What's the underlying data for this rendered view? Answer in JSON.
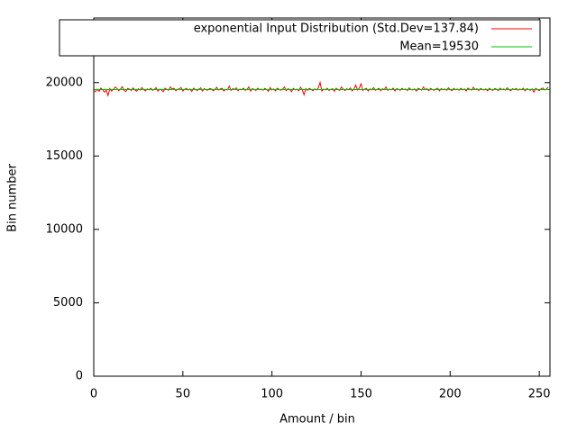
{
  "chart_data": {
    "type": "line",
    "xlabel": "Amount / bin",
    "ylabel": "Bin number",
    "xlim": [
      0,
      256
    ],
    "ylim": [
      0,
      24400
    ],
    "xticks": [
      0,
      50,
      100,
      150,
      200,
      250
    ],
    "yticks": [
      0,
      5000,
      10000,
      15000,
      20000
    ],
    "legend": "top right",
    "series": [
      {
        "name": "exponential Input Distribution (Std.Dev=137.84)",
        "color": "#ff0000",
        "x": [
          0,
          1,
          2,
          3,
          4,
          5,
          6,
          7,
          8,
          9,
          10,
          11,
          12,
          13,
          14,
          15,
          16,
          17,
          18,
          19,
          20,
          21,
          22,
          23,
          24,
          25,
          26,
          27,
          28,
          29,
          30,
          31,
          32,
          33,
          34,
          35,
          36,
          37,
          38,
          39,
          40,
          41,
          42,
          43,
          44,
          45,
          46,
          47,
          48,
          49,
          50,
          51,
          52,
          53,
          54,
          55,
          56,
          57,
          58,
          59,
          60,
          61,
          62,
          63,
          64,
          65,
          66,
          67,
          68,
          69,
          70,
          71,
          72,
          73,
          74,
          75,
          76,
          77,
          78,
          79,
          80,
          81,
          82,
          83,
          84,
          85,
          86,
          87,
          88,
          89,
          90,
          91,
          92,
          93,
          94,
          95,
          96,
          97,
          98,
          99,
          100,
          101,
          102,
          103,
          104,
          105,
          106,
          107,
          108,
          109,
          110,
          111,
          112,
          113,
          114,
          115,
          116,
          117,
          118,
          119,
          120,
          121,
          122,
          123,
          124,
          125,
          126,
          127,
          128,
          129,
          130,
          131,
          132,
          133,
          134,
          135,
          136,
          137,
          138,
          139,
          140,
          141,
          142,
          143,
          144,
          145,
          146,
          147,
          148,
          149,
          150,
          151,
          152,
          153,
          154,
          155,
          156,
          157,
          158,
          159,
          160,
          161,
          162,
          163,
          164,
          165,
          166,
          167,
          168,
          169,
          170,
          171,
          172,
          173,
          174,
          175,
          176,
          177,
          178,
          179,
          180,
          181,
          182,
          183,
          184,
          185,
          186,
          187,
          188,
          189,
          190,
          191,
          192,
          193,
          194,
          195,
          196,
          197,
          198,
          199,
          200,
          201,
          202,
          203,
          204,
          205,
          206,
          207,
          208,
          209,
          210,
          211,
          212,
          213,
          214,
          215,
          216,
          217,
          218,
          219,
          220,
          221,
          222,
          223,
          224,
          225,
          226,
          227,
          228,
          229,
          230,
          231,
          232,
          233,
          234,
          235,
          236,
          237,
          238,
          239,
          240,
          241,
          242,
          243,
          244,
          245,
          246,
          247,
          248,
          249,
          250,
          251,
          252,
          253,
          254,
          255
        ],
        "values": [
          19450,
          19380,
          19560,
          19400,
          19620,
          19510,
          19350,
          19480,
          19120,
          19590,
          19420,
          19530,
          19700,
          19610,
          19450,
          19560,
          19720,
          19480,
          19390,
          19600,
          19550,
          19460,
          19640,
          19520,
          19410,
          19580,
          19490,
          19660,
          19530,
          19440,
          19570,
          19500,
          19610,
          19470,
          19540,
          19650,
          19420,
          19560,
          19500,
          19380,
          19620,
          19530,
          19480,
          19700,
          19560,
          19610,
          19450,
          19520,
          19580,
          19660,
          19430,
          19540,
          19610,
          19490,
          19570,
          19400,
          19620,
          19530,
          19470,
          19550,
          19640,
          19420,
          19590,
          19510,
          19480,
          19600,
          19560,
          19450,
          19530,
          19680,
          19490,
          19570,
          19610,
          19430,
          19540,
          19500,
          19760,
          19470,
          19590,
          19520,
          19640,
          19450,
          19560,
          19500,
          19610,
          19480,
          19530,
          19700,
          19420,
          19590,
          19540,
          19470,
          19620,
          19510,
          19560,
          19480,
          19600,
          19530,
          19410,
          19660,
          19500,
          19570,
          19440,
          19620,
          19530,
          19480,
          19560,
          19700,
          19450,
          19590,
          19520,
          19380,
          19610,
          19500,
          19560,
          19440,
          19680,
          19520,
          19170,
          19590,
          19480,
          19610,
          19530,
          19450,
          19570,
          19500,
          19640,
          20010,
          19420,
          19560,
          19500,
          19610,
          19470,
          19530,
          19590,
          19410,
          19620,
          19520,
          19480,
          19700,
          19550,
          19460,
          19580,
          19510,
          19640,
          19440,
          19560,
          19830,
          19500,
          19620,
          19920,
          19470,
          19550,
          19600,
          19430,
          19570,
          19510,
          19660,
          19480,
          19540,
          19610,
          19450,
          19580,
          19520,
          19700,
          19470,
          19560,
          19500,
          19620,
          19430,
          19590,
          19540,
          19480,
          19610,
          19520,
          19570,
          19460,
          19640,
          19530,
          19500,
          19580,
          19420,
          19610,
          19550,
          19490,
          19700,
          19520,
          19580,
          19450,
          19600,
          19530,
          19480,
          19560,
          19620,
          19440,
          19590,
          19510,
          19570,
          19480,
          19640,
          19530,
          19450,
          19600,
          19520,
          19560,
          19480,
          19610,
          19500,
          19570,
          19430,
          19620,
          19540,
          19490,
          19680,
          19520,
          19580,
          19460,
          19600,
          19530,
          19500,
          19570,
          19440,
          19610,
          19520,
          19480,
          19590,
          19550,
          19460,
          19620,
          19510,
          19570,
          19490,
          19640,
          19530,
          19450,
          19580,
          19520,
          19600,
          19480,
          19560,
          19510,
          19620,
          19440,
          19590,
          19530,
          19480,
          19570,
          19350,
          19610,
          19520,
          19460,
          19580,
          19630,
          19500,
          19560,
          19700
        ]
      },
      {
        "name": "Mean=19530",
        "color": "#00c000",
        "x": [
          0,
          256
        ],
        "values": [
          19530,
          19530
        ]
      }
    ]
  }
}
